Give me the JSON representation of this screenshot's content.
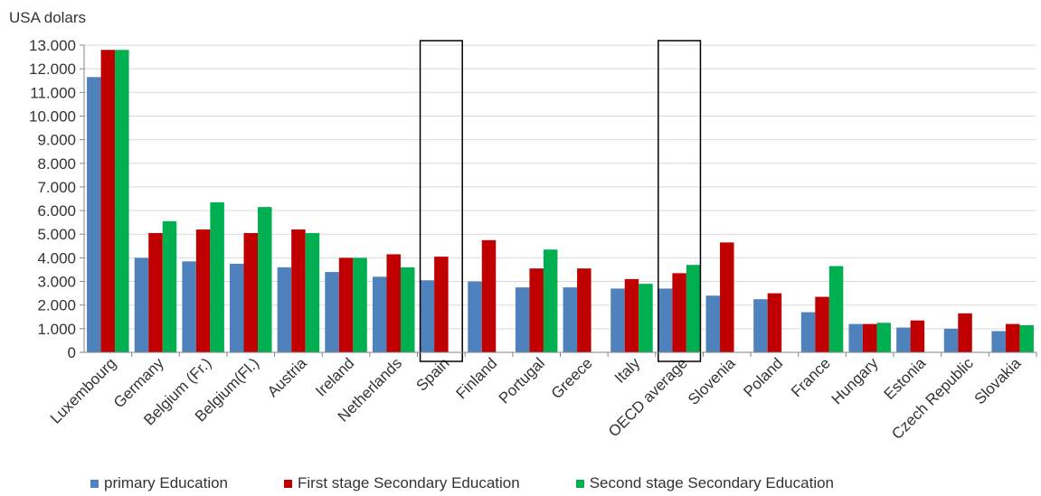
{
  "chart_data": {
    "type": "bar",
    "ylabel": "USA dolars",
    "ylim": [
      0,
      13000
    ],
    "ytick_step": 1000,
    "ytick_labels": [
      "0",
      "1.000",
      "2.000",
      "3.000",
      "4.000",
      "5.000",
      "6.000",
      "7.000",
      "8.000",
      "9.000",
      "10.000",
      "11.000",
      "12.000",
      "13.000"
    ],
    "grid": true,
    "legend_position": "bottom",
    "categories": [
      "Luxembourg",
      "Germany",
      "Belgium (Fr.)",
      "Belgium(Fl.)",
      "Austria",
      "Ireland",
      "Netherlands",
      "Spain",
      "Finland",
      "Portugal",
      "Greece",
      "Italy",
      "OECD average",
      "Slovenia",
      "Poland",
      "France",
      "Hungary",
      "Estonia",
      "Czech Republic",
      "Slovakia"
    ],
    "highlighted_categories": [
      "Spain",
      "OECD average"
    ],
    "series": [
      {
        "name": "primary Education",
        "color": "#4f81bd",
        "values": [
          11650,
          4000,
          3850,
          3750,
          3600,
          3400,
          3200,
          3050,
          3000,
          2750,
          2750,
          2700,
          2700,
          2400,
          2250,
          1700,
          1200,
          1050,
          1000,
          900
        ]
      },
      {
        "name": "First stage Secondary Education",
        "color": "#c00000",
        "values": [
          12800,
          5050,
          5200,
          5050,
          5200,
          4000,
          4150,
          4050,
          4750,
          3550,
          3550,
          3100,
          3350,
          4650,
          2500,
          2350,
          1200,
          1350,
          1650,
          1200
        ]
      },
      {
        "name": "Second stage Secondary Education",
        "color": "#00b050",
        "values": [
          12800,
          5550,
          6350,
          6150,
          5050,
          4000,
          3600,
          null,
          null,
          4350,
          null,
          2900,
          3700,
          null,
          null,
          3650,
          1250,
          null,
          null,
          1150
        ]
      }
    ]
  }
}
